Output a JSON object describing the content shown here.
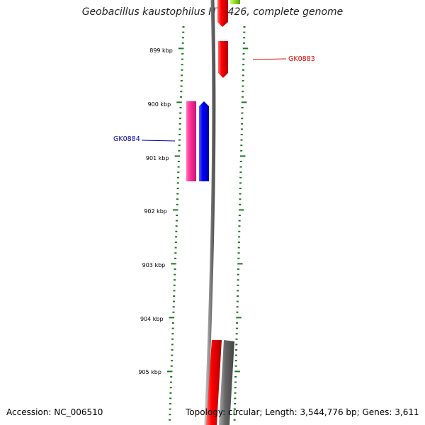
{
  "title": "Geobacillus kaustophilus HTA426, complete genome",
  "tick_labels": [
    "899 kbp",
    "900 kbp",
    "901 kbp",
    "902 kbp",
    "903 kbp",
    "904 kbp",
    "905 kbp"
  ],
  "genes": {
    "gk0883": {
      "label": "GK0883",
      "color": "#dd0000"
    },
    "gk0884": {
      "label": "GK0884",
      "color": "#0000aa"
    }
  },
  "footer": {
    "accession": "Accession: NC_006510",
    "summary": "Topology: circular; Length: 3,544,776 bp; Genes: 3,611"
  },
  "colors": {
    "tick_green": "#1a7a1a",
    "backbone_gray": "#888888",
    "gene_red": "#ff0000",
    "gene_blue": "#0000ff",
    "gene_pink": "#ff3399",
    "gene_green": "#88dd22",
    "gene_gray": "#666666"
  }
}
